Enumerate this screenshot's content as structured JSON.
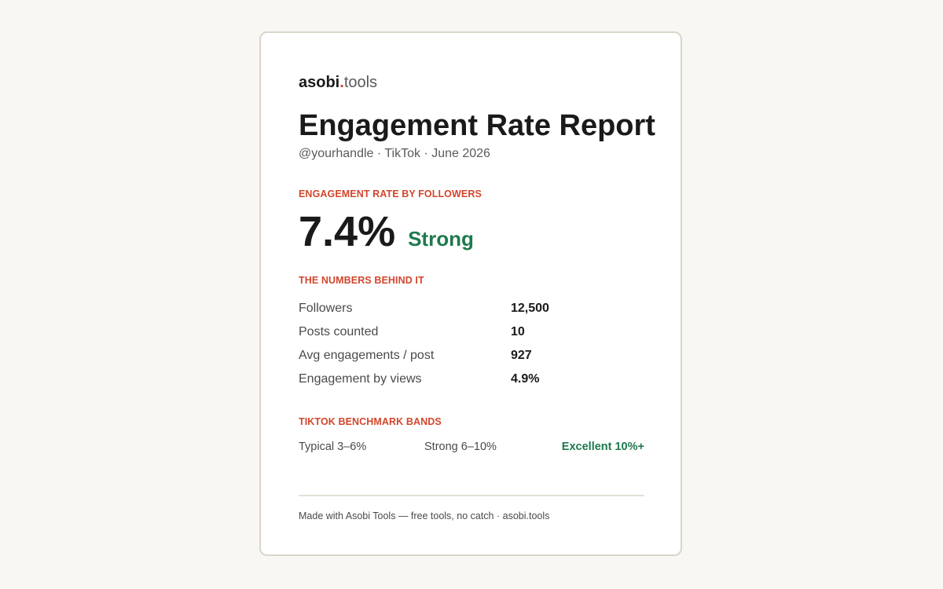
{
  "brand": {
    "name": "asobi",
    "dot": ".",
    "tld": "tools"
  },
  "report": {
    "title": "Engagement Rate Report",
    "subtitle": "@yourhandle · TikTok · June 2026"
  },
  "engagement": {
    "label": "ENGAGEMENT RATE BY FOLLOWERS",
    "value": "7.4%",
    "verdict": "Strong",
    "verdict_color": "#1e7a4e"
  },
  "numbers": {
    "label": "THE NUMBERS BEHIND IT",
    "rows": [
      {
        "label": "Followers",
        "value": "12,500"
      },
      {
        "label": "Posts counted",
        "value": "10"
      },
      {
        "label": "Avg engagements / post",
        "value": "927"
      },
      {
        "label": "Engagement by views",
        "value": "4.9%"
      }
    ]
  },
  "benchmarks": {
    "label": "TIKTOK BENCHMARK BANDS",
    "typical": "Typical 3–6%",
    "strong": "Strong 6–10%",
    "excellent": "Excellent 10%+"
  },
  "footer": {
    "text": "Made with Asobi Tools — free tools, no catch · asobi.tools"
  },
  "colors": {
    "accent": "#d2462c",
    "positive": "#1e7a4e",
    "page_background": "#f8f7f3"
  }
}
